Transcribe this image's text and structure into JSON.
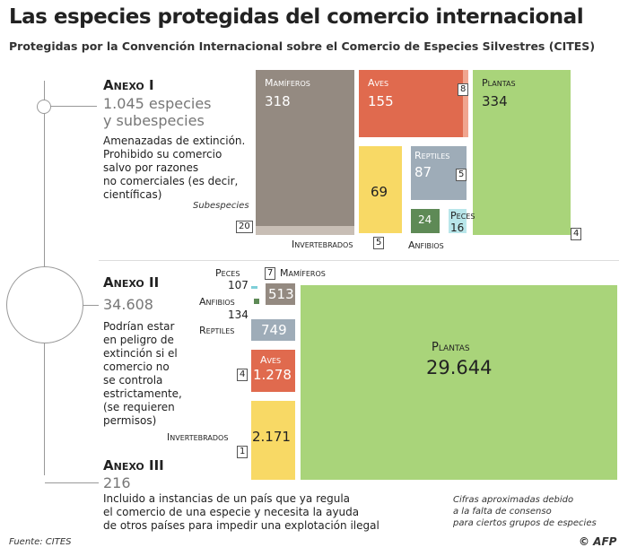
{
  "title": "Las especies protegidas del comercio internacional",
  "subtitle": "Protegidas por la Convención Internacional sobre el Comercio de Especies Silvestres (CITES)",
  "colors": {
    "mamiferos": "#948a81",
    "aves": "#e06a4e",
    "plantas": "#a9d47a",
    "invertebrados": "#f8d965",
    "reptiles": "#9eacb8",
    "anfibios": "#5e8a56",
    "peces": "#7ecfd8"
  },
  "anexo1": {
    "title": "Anexo I",
    "count": "1.045 especies",
    "count2": "y subespecies",
    "desc": [
      "Amenazadas de extinción.",
      "Prohibido su comercio",
      "salvo por razones",
      "no comerciales (es decir,",
      "científicas)"
    ],
    "subespecies_label": "Subespecies"
  },
  "anexo2": {
    "title": "Anexo II",
    "count": "34.608",
    "desc": [
      "Podrían estar",
      "en peligro de",
      "extinción si el",
      "comercio no",
      "se controla",
      "estrictamente,",
      "(se requieren",
      "permisos)"
    ]
  },
  "anexo3": {
    "title": "Anexo III",
    "count": "216",
    "desc": [
      "Incluido a instancias de un país que ya regula",
      "el comercio de una especie y necesita la ayuda",
      "de otros países para impedir una explotación ilegal"
    ]
  },
  "note": [
    "Cifras aproximadas debido",
    "a la falta de consenso",
    "para ciertos grupos de especies"
  ],
  "source": "Fuente: CITES",
  "credit": "© AFP",
  "chart_data": [
    {
      "type": "treemap",
      "group": "Anexo I",
      "items": [
        {
          "name": "Mamíferos",
          "value": "318",
          "subspecies": "20"
        },
        {
          "name": "Aves",
          "value": "155",
          "subspecies": "8"
        },
        {
          "name": "Plantas",
          "value": "334",
          "subspecies": "4"
        },
        {
          "name": "Invertebrados",
          "value": "69",
          "subspecies": "5"
        },
        {
          "name": "Reptiles",
          "value": "87",
          "subspecies": "5"
        },
        {
          "name": "Anfibios",
          "value": "24"
        },
        {
          "name": "Peces",
          "value": "16"
        }
      ]
    },
    {
      "type": "treemap",
      "group": "Anexo II",
      "items": [
        {
          "name": "Peces",
          "value": "107"
        },
        {
          "name": "Mamíferos",
          "value": "513",
          "subspecies": "7"
        },
        {
          "name": "Anfibios",
          "value": "134"
        },
        {
          "name": "Reptiles",
          "value": "749"
        },
        {
          "name": "Aves",
          "value": "1.278",
          "subspecies": "4"
        },
        {
          "name": "Invertebrados",
          "value": "2.171",
          "subspecies": "1"
        },
        {
          "name": "Plantas",
          "value": "29.644"
        }
      ]
    }
  ]
}
